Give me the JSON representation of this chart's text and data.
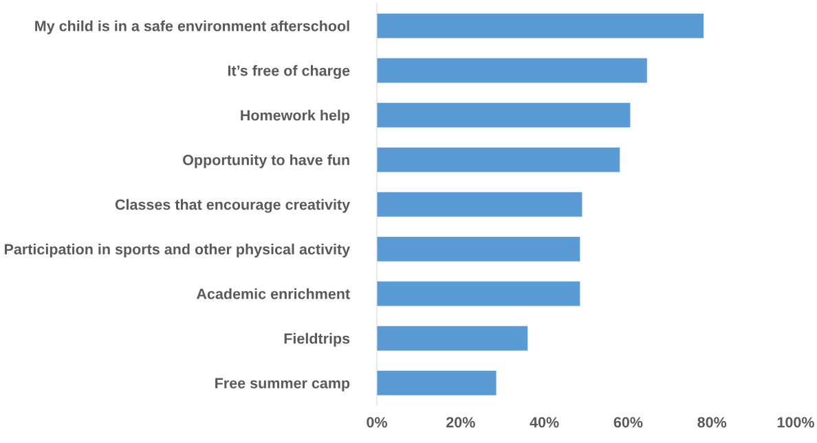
{
  "chart_data": {
    "type": "bar",
    "orientation": "horizontal",
    "categories": [
      "My child is in a safe environment afterschool",
      "It’s free of charge",
      "Homework help",
      "Opportunity to have fun",
      "Classes that encourage creativity",
      "Participation in sports and other physical activity",
      "Academic enrichment",
      "Fieldtrips",
      "Free summer camp"
    ],
    "values": [
      78,
      64.5,
      60.5,
      58,
      49,
      48.5,
      48.5,
      36,
      28.5
    ],
    "color": "#5b9bd5",
    "xlim": [
      0,
      100
    ],
    "xticks": [
      {
        "value": 0,
        "label": "0%"
      },
      {
        "value": 20,
        "label": "20%"
      },
      {
        "value": 40,
        "label": "40%"
      },
      {
        "value": 60,
        "label": "60%"
      },
      {
        "value": 80,
        "label": "80%"
      },
      {
        "value": 100,
        "label": "100%"
      }
    ],
    "grid": false,
    "legend": false
  }
}
